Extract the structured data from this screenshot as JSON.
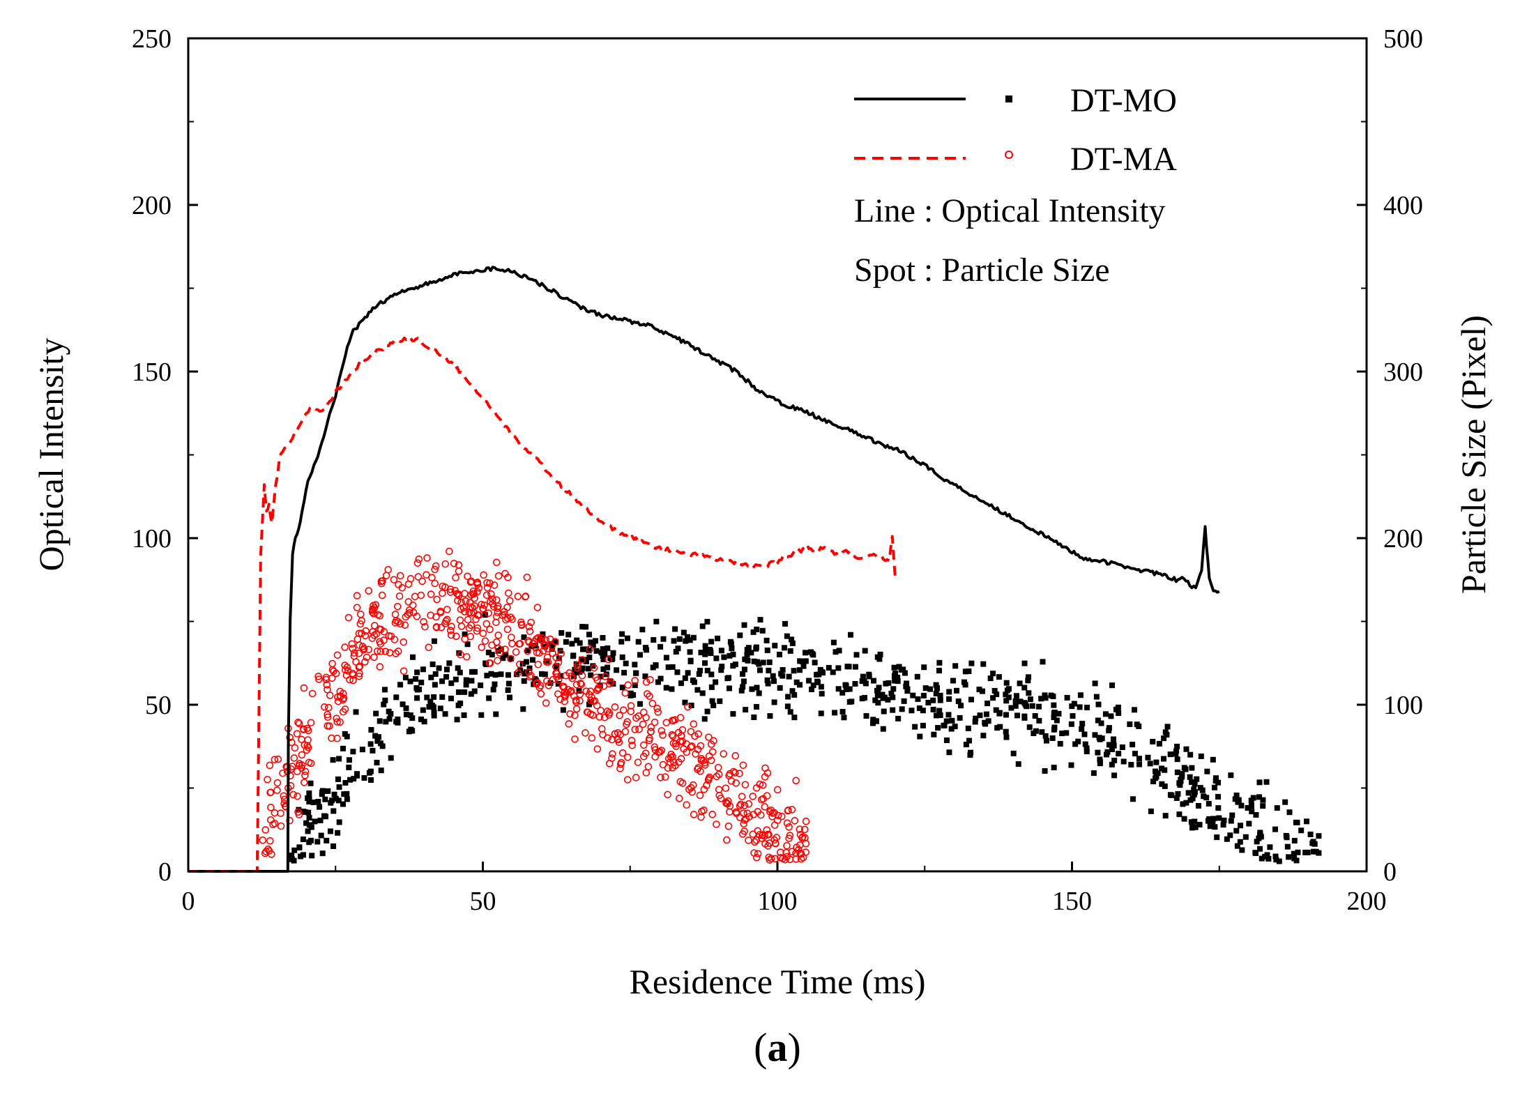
{
  "chart_data": {
    "type": "line+scatter",
    "panel_label": {
      "open": "(",
      "letter": "a",
      "close": ")"
    },
    "xlabel": "Residence Time (ms)",
    "ylabel_left": "Optical Intensity",
    "ylabel_right": "Particle Size (Pixel)",
    "xlim": [
      0,
      200
    ],
    "ylim_left": [
      0,
      250
    ],
    "ylim_right": [
      0,
      500
    ],
    "x_ticks": [
      "0",
      "50",
      "100",
      "150",
      "200"
    ],
    "y_left_ticks": [
      "0",
      "50",
      "100",
      "150",
      "200",
      "250"
    ],
    "y_right_ticks": [
      "0",
      "100",
      "200",
      "300",
      "400",
      "500"
    ],
    "legend": {
      "series1": "DT-MO",
      "series2": "DT-MA",
      "note_line": "Line : Optical Intensity",
      "note_spot": "Spot : Particle Size"
    },
    "series": [
      {
        "name": "DT-MO",
        "axis": "left",
        "style": "solid",
        "color": "#000000",
        "x": [
          0,
          16.9,
          17.0,
          17.3,
          17.7,
          18.2,
          19,
          20,
          21,
          22,
          23,
          24,
          25,
          26,
          27,
          28,
          30,
          32,
          34,
          36,
          38,
          40,
          42,
          45,
          48,
          50,
          52,
          55,
          58,
          60,
          63,
          65,
          67,
          70,
          73,
          75,
          78,
          80,
          83,
          85,
          88,
          90,
          93,
          95,
          97,
          100,
          103,
          106,
          110,
          114,
          118,
          121,
          125,
          128,
          131,
          135,
          138,
          141,
          144,
          147,
          150,
          152,
          155,
          158,
          160,
          163,
          165,
          167,
          168,
          169,
          170,
          171,
          172,
          172.6,
          173.3,
          174,
          175
        ],
        "y": [
          0,
          0,
          40,
          75,
          95,
          100,
          105,
          115,
          120,
          125,
          130,
          137,
          143,
          150,
          157,
          162,
          166,
          170,
          172,
          174,
          175,
          176,
          177,
          179,
          180,
          180.5,
          181,
          180,
          178,
          176,
          173,
          171,
          169,
          167,
          166,
          165,
          164,
          162,
          160,
          158,
          155,
          153,
          150,
          147,
          144,
          141,
          139,
          137,
          134,
          131,
          128,
          126,
          122,
          118,
          115,
          111,
          108,
          105,
          102,
          99,
          96,
          94,
          93,
          92,
          91,
          90,
          89,
          88,
          87,
          88,
          86,
          85,
          90,
          103,
          88,
          84,
          84
        ]
      },
      {
        "name": "DT-MA",
        "axis": "left",
        "style": "dashed",
        "color": "#ff0000",
        "x": [
          0,
          11.7,
          12.3,
          12.9,
          13.3,
          13.7,
          14.2,
          14.8,
          15.5,
          16,
          17,
          18,
          19,
          20,
          21,
          22,
          23,
          25,
          27,
          29,
          31,
          33,
          35,
          37,
          39,
          41,
          43,
          45,
          47,
          50,
          53,
          56,
          59,
          62,
          65,
          68,
          71,
          74,
          77,
          80,
          83,
          86,
          89,
          92,
          95,
          98,
          99,
          100,
          101,
          102,
          103,
          104,
          105,
          106,
          108,
          110,
          112,
          114,
          116,
          118,
          119,
          119.5,
          120
        ],
        "y": [
          0,
          0,
          95,
          116,
          108,
          110,
          104,
          115,
          124,
          126,
          128,
          131,
          134,
          137,
          140,
          138,
          138,
          144,
          148,
          152,
          155,
          157,
          159,
          160,
          159.5,
          157,
          155,
          152,
          148,
          142,
          135,
          129,
          124,
          118,
          113,
          108,
          104,
          101,
          99,
          97,
          96,
          95,
          94,
          93,
          92,
          91,
          93,
          92,
          95,
          94,
          97,
          96,
          98,
          96,
          97,
          95,
          96,
          94,
          95,
          94,
          93,
          101,
          88
        ]
      },
      {
        "name": "DT-MO",
        "axis": "right",
        "style": "points",
        "marker": "square",
        "color": "#000000",
        "points": [
          [
            17.5,
            8
          ],
          [
            18.5,
            15
          ],
          [
            20,
            25
          ],
          [
            22,
            32
          ],
          [
            24,
            40
          ],
          [
            26,
            50
          ],
          [
            28,
            60
          ],
          [
            30,
            68
          ],
          [
            32,
            76
          ],
          [
            34,
            85
          ],
          [
            36,
            92
          ],
          [
            38,
            98
          ],
          [
            40,
            104
          ],
          [
            42,
            108
          ],
          [
            45,
            112
          ],
          [
            48,
            118
          ],
          [
            51,
            120
          ],
          [
            55,
            122
          ],
          [
            60,
            125
          ],
          [
            65,
            127
          ],
          [
            70,
            127
          ],
          [
            75,
            128
          ],
          [
            80,
            126
          ],
          [
            85,
            125
          ],
          [
            90,
            123
          ],
          [
            95,
            121
          ],
          [
            100,
            119
          ],
          [
            105,
            116
          ],
          [
            110,
            113
          ],
          [
            115,
            110
          ],
          [
            120,
            108
          ],
          [
            125,
            105
          ],
          [
            130,
            102
          ],
          [
            135,
            99
          ],
          [
            140,
            96
          ],
          [
            145,
            92
          ],
          [
            150,
            88
          ],
          [
            155,
            82
          ],
          [
            160,
            72
          ],
          [
            165,
            62
          ],
          [
            170,
            52
          ],
          [
            175,
            40
          ],
          [
            180,
            28
          ],
          [
            185,
            18
          ],
          [
            190,
            12
          ],
          [
            192,
            10
          ]
        ],
        "spread": 26
      },
      {
        "name": "DT-MA",
        "axis": "right",
        "style": "points",
        "marker": "circle",
        "color": "#ff0000",
        "points": [
          [
            12.5,
            18
          ],
          [
            14,
            32
          ],
          [
            16,
            48
          ],
          [
            18,
            62
          ],
          [
            20,
            78
          ],
          [
            22,
            92
          ],
          [
            24,
            104
          ],
          [
            26,
            116
          ],
          [
            28,
            128
          ],
          [
            30,
            140
          ],
          [
            32,
            150
          ],
          [
            34,
            158
          ],
          [
            36,
            162
          ],
          [
            38,
            164
          ],
          [
            40,
            165
          ],
          [
            42,
            165
          ],
          [
            45,
            163
          ],
          [
            48,
            160
          ],
          [
            51,
            156
          ],
          [
            54,
            150
          ],
          [
            57,
            140
          ],
          [
            60,
            125
          ],
          [
            64,
            114
          ],
          [
            68,
            103
          ],
          [
            72,
            94
          ],
          [
            76,
            86
          ],
          [
            80,
            77
          ],
          [
            84,
            67
          ],
          [
            88,
            57
          ],
          [
            92,
            44
          ],
          [
            96,
            32
          ],
          [
            100,
            24
          ],
          [
            103,
            20
          ],
          [
            105,
            12
          ]
        ],
        "spread": 30
      }
    ]
  }
}
